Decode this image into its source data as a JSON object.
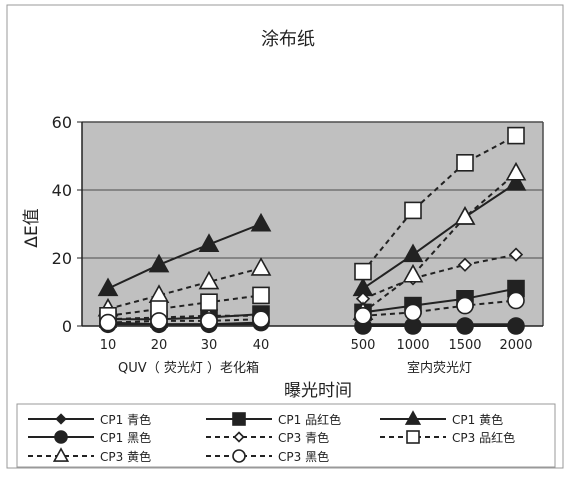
{
  "chart_data": {
    "type": "line",
    "title": "涂布纸",
    "xlabel": "曝光时间",
    "ylabel": "ΔE值",
    "ylim": [
      0,
      60
    ],
    "yticks": [
      0,
      20,
      40,
      60
    ],
    "grid": true,
    "legend_position": "bottom",
    "groups": [
      {
        "name": "QUV（ 荧光灯 ）老化箱",
        "categories": [
          "10",
          "20",
          "30",
          "40"
        ]
      },
      {
        "name": "室内荧光灯",
        "categories": [
          "500",
          "1000",
          "1500",
          "2000"
        ]
      }
    ],
    "series": [
      {
        "name": "CP1 青色",
        "marker": "diamond",
        "fill": "#222222",
        "line": "solid",
        "values": [
          [
            1,
            0.5,
            0.5,
            0.5
          ],
          [
            0.5,
            0.5,
            0.5,
            0.5
          ]
        ]
      },
      {
        "name": "CP1 品红色",
        "marker": "square",
        "fill": "#222222",
        "line": "solid",
        "values": [
          [
            2,
            2,
            2.5,
            3.5
          ],
          [
            4,
            6,
            8,
            11
          ]
        ]
      },
      {
        "name": "CP1 黄色",
        "marker": "triangle",
        "fill": "#222222",
        "line": "solid",
        "values": [
          [
            11,
            18,
            24,
            30
          ],
          [
            11,
            21,
            32,
            42
          ]
        ]
      },
      {
        "name": "CP1 黑色",
        "marker": "circle",
        "fill": "#222222",
        "line": "solid",
        "values": [
          [
            0.5,
            0.5,
            0.5,
            1
          ],
          [
            0,
            0,
            0,
            0
          ]
        ]
      },
      {
        "name": "CP3 青色",
        "marker": "diamond",
        "fill": "#ffffff",
        "line": "dashed",
        "values": [
          [
            2,
            2.5,
            3,
            3
          ],
          [
            8,
            14,
            18,
            21
          ]
        ]
      },
      {
        "name": "CP3 品红色",
        "marker": "square",
        "fill": "#ffffff",
        "line": "dashed",
        "values": [
          [
            3,
            5,
            7,
            9
          ],
          [
            16,
            34,
            48,
            56
          ]
        ]
      },
      {
        "name": "CP3 黄色",
        "marker": "triangle",
        "fill": "#ffffff",
        "line": "dashed",
        "values": [
          [
            5,
            9,
            13,
            17
          ],
          [
            4,
            15,
            32,
            45
          ]
        ]
      },
      {
        "name": "CP3 黑色",
        "marker": "circle",
        "fill": "#ffffff",
        "line": "dashed",
        "values": [
          [
            1,
            1.5,
            1.5,
            2
          ],
          [
            3,
            4,
            6,
            7.5
          ]
        ]
      }
    ]
  },
  "colors": {
    "plot_background": "#c0c0c0",
    "gridline": "#4d4d4d",
    "marker_dark": "#222222",
    "marker_light": "#ffffff"
  }
}
